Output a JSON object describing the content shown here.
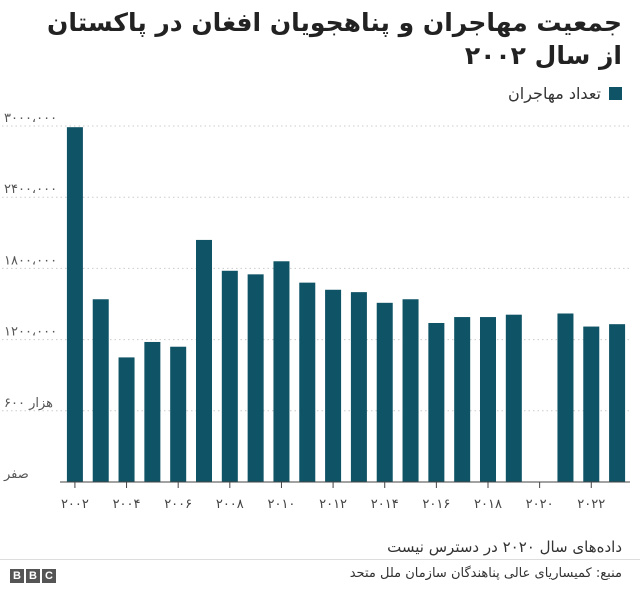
{
  "title": "جمعیت مهاجران و پناهجویان افغان در پاکستان از سال ۲۰۰۲",
  "note": "داده‌های سال ۲۰۲۰ در دسترس نیست",
  "source": "منبع: کمیساریای عالی پناهندگان سازمان ملل متحد",
  "brand": [
    "B",
    "B",
    "C"
  ],
  "colors": {
    "bar": "#0f5466",
    "axis": "#444444",
    "grid": "#cccccc"
  },
  "chart_data": {
    "type": "bar",
    "categories": [
      2002,
      2003,
      2004,
      2005,
      2006,
      2007,
      2008,
      2009,
      2010,
      2011,
      2012,
      2013,
      2014,
      2015,
      2016,
      2017,
      2018,
      2019,
      2020,
      2021,
      2022,
      2023
    ],
    "series": [
      {
        "name": "تعداد مهاجران",
        "values": [
          2990000,
          1540000,
          1050000,
          1180000,
          1140000,
          2040000,
          1780000,
          1750000,
          1860000,
          1680000,
          1620000,
          1600000,
          1510000,
          1540000,
          1340000,
          1390000,
          1390000,
          1410000,
          null,
          1420000,
          1310000,
          1330000
        ]
      }
    ],
    "ylim": [
      0,
      3000000
    ],
    "yticks": [
      {
        "value": 0,
        "label": "صفر"
      },
      {
        "value": 600000,
        "label": "۶۰۰ هزار"
      },
      {
        "value": 1200000,
        "label": "۱۲۰۰،۰۰۰"
      },
      {
        "value": 1800000,
        "label": "۱۸۰۰،۰۰۰"
      },
      {
        "value": 2400000,
        "label": "۲۴۰۰،۰۰۰"
      },
      {
        "value": 3000000,
        "label": "۳۰۰۰،۰۰۰"
      }
    ],
    "xtick_labels": [
      {
        "category": 2002,
        "label": "۲۰۰۲"
      },
      {
        "category": 2004,
        "label": "۲۰۰۴"
      },
      {
        "category": 2006,
        "label": "۲۰۰۶"
      },
      {
        "category": 2008,
        "label": "۲۰۰۸"
      },
      {
        "category": 2010,
        "label": "۲۰۱۰"
      },
      {
        "category": 2012,
        "label": "۲۰۱۲"
      },
      {
        "category": 2014,
        "label": "۲۰۱۴"
      },
      {
        "category": 2016,
        "label": "۲۰۱۶"
      },
      {
        "category": 2018,
        "label": "۲۰۱۸"
      },
      {
        "category": 2020,
        "label": "۲۰۲۰"
      },
      {
        "category": 2022,
        "label": "۲۰۲۲"
      }
    ],
    "grid": true,
    "legend": "top-right"
  }
}
